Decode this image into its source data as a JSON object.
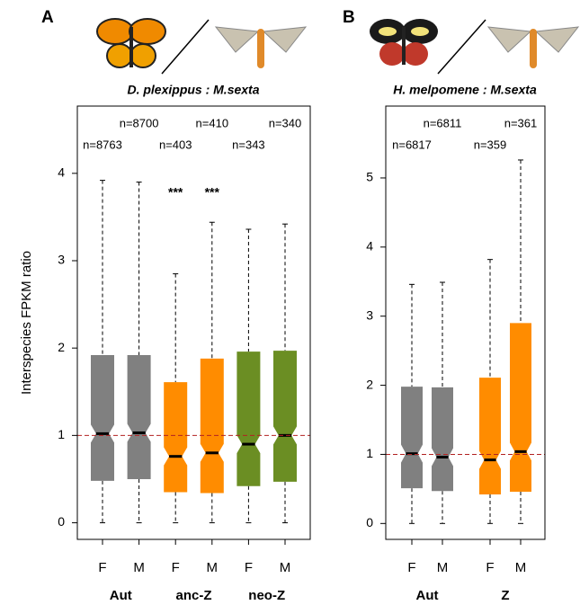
{
  "chart_data": [
    {
      "type": "box",
      "panel_label": "A",
      "title": "D. plexippus : M.sexta",
      "y_label": "Interspecies FPKM ratio",
      "ylim": [
        -0.19,
        4.77
      ],
      "yticks": [
        0,
        1,
        2,
        3,
        4
      ],
      "reference_line": 1,
      "reference_color": "#b22222",
      "groups": [
        {
          "name": "Aut",
          "label_color": "#000000",
          "color": "#808080",
          "boxes": [
            {
              "label": "F",
              "n_label": "n=8763",
              "low": 0,
              "q1": 0.48,
              "median": 1.02,
              "q3": 1.92,
              "high": 3.92
            },
            {
              "label": "M",
              "n_label": "n=8700",
              "low": 0,
              "q1": 0.5,
              "median": 1.03,
              "q3": 1.92,
              "high": 3.9
            }
          ]
        },
        {
          "name": "anc-Z",
          "label_color": "#ff8c00",
          "color": "#ff8c00",
          "boxes": [
            {
              "label": "F",
              "n_label": "n=403",
              "annotation": "***",
              "low": 0,
              "q1": 0.35,
              "median": 0.76,
              "q3": 1.61,
              "high": 2.85
            },
            {
              "label": "M",
              "n_label": "n=410",
              "annotation": "***",
              "low": 0,
              "q1": 0.34,
              "median": 0.8,
              "q3": 1.88,
              "high": 3.44
            }
          ]
        },
        {
          "name": "neo-Z",
          "label_color": "#6b8e23",
          "color": "#6b8e23",
          "boxes": [
            {
              "label": "F",
              "n_label": "n=343",
              "low": 0,
              "q1": 0.42,
              "median": 0.9,
              "q3": 1.96,
              "high": 3.36
            },
            {
              "label": "M",
              "n_label": "n=340",
              "low": 0,
              "q1": 0.47,
              "median": 1.0,
              "q3": 1.97,
              "high": 3.42
            }
          ]
        }
      ]
    },
    {
      "type": "box",
      "panel_label": "B",
      "title": "H. melpomene : M.sexta",
      "ylim": [
        -0.23,
        6.04
      ],
      "yticks": [
        0,
        1,
        2,
        3,
        4,
        5
      ],
      "reference_line": 1,
      "reference_color": "#b22222",
      "groups": [
        {
          "name": "Aut",
          "label_color": "#000000",
          "color": "#808080",
          "boxes": [
            {
              "label": "F",
              "n_label": "n=6817",
              "low": 0,
              "q1": 0.51,
              "median": 1.01,
              "q3": 1.98,
              "high": 3.46
            },
            {
              "label": "M",
              "n_label": "n=6811",
              "low": 0,
              "q1": 0.47,
              "median": 0.96,
              "q3": 1.97,
              "high": 3.49
            }
          ]
        },
        {
          "name": "Z",
          "label_color": "#ff8c00",
          "color": "#ff8c00",
          "boxes": [
            {
              "label": "F",
              "n_label": "n=359",
              "low": 0,
              "q1": 0.42,
              "median": 0.92,
              "q3": 2.11,
              "high": 3.82
            },
            {
              "label": "M",
              "n_label": "n=361",
              "low": 0,
              "q1": 0.46,
              "median": 1.04,
              "q3": 2.9,
              "high": 5.26
            }
          ]
        }
      ]
    }
  ]
}
